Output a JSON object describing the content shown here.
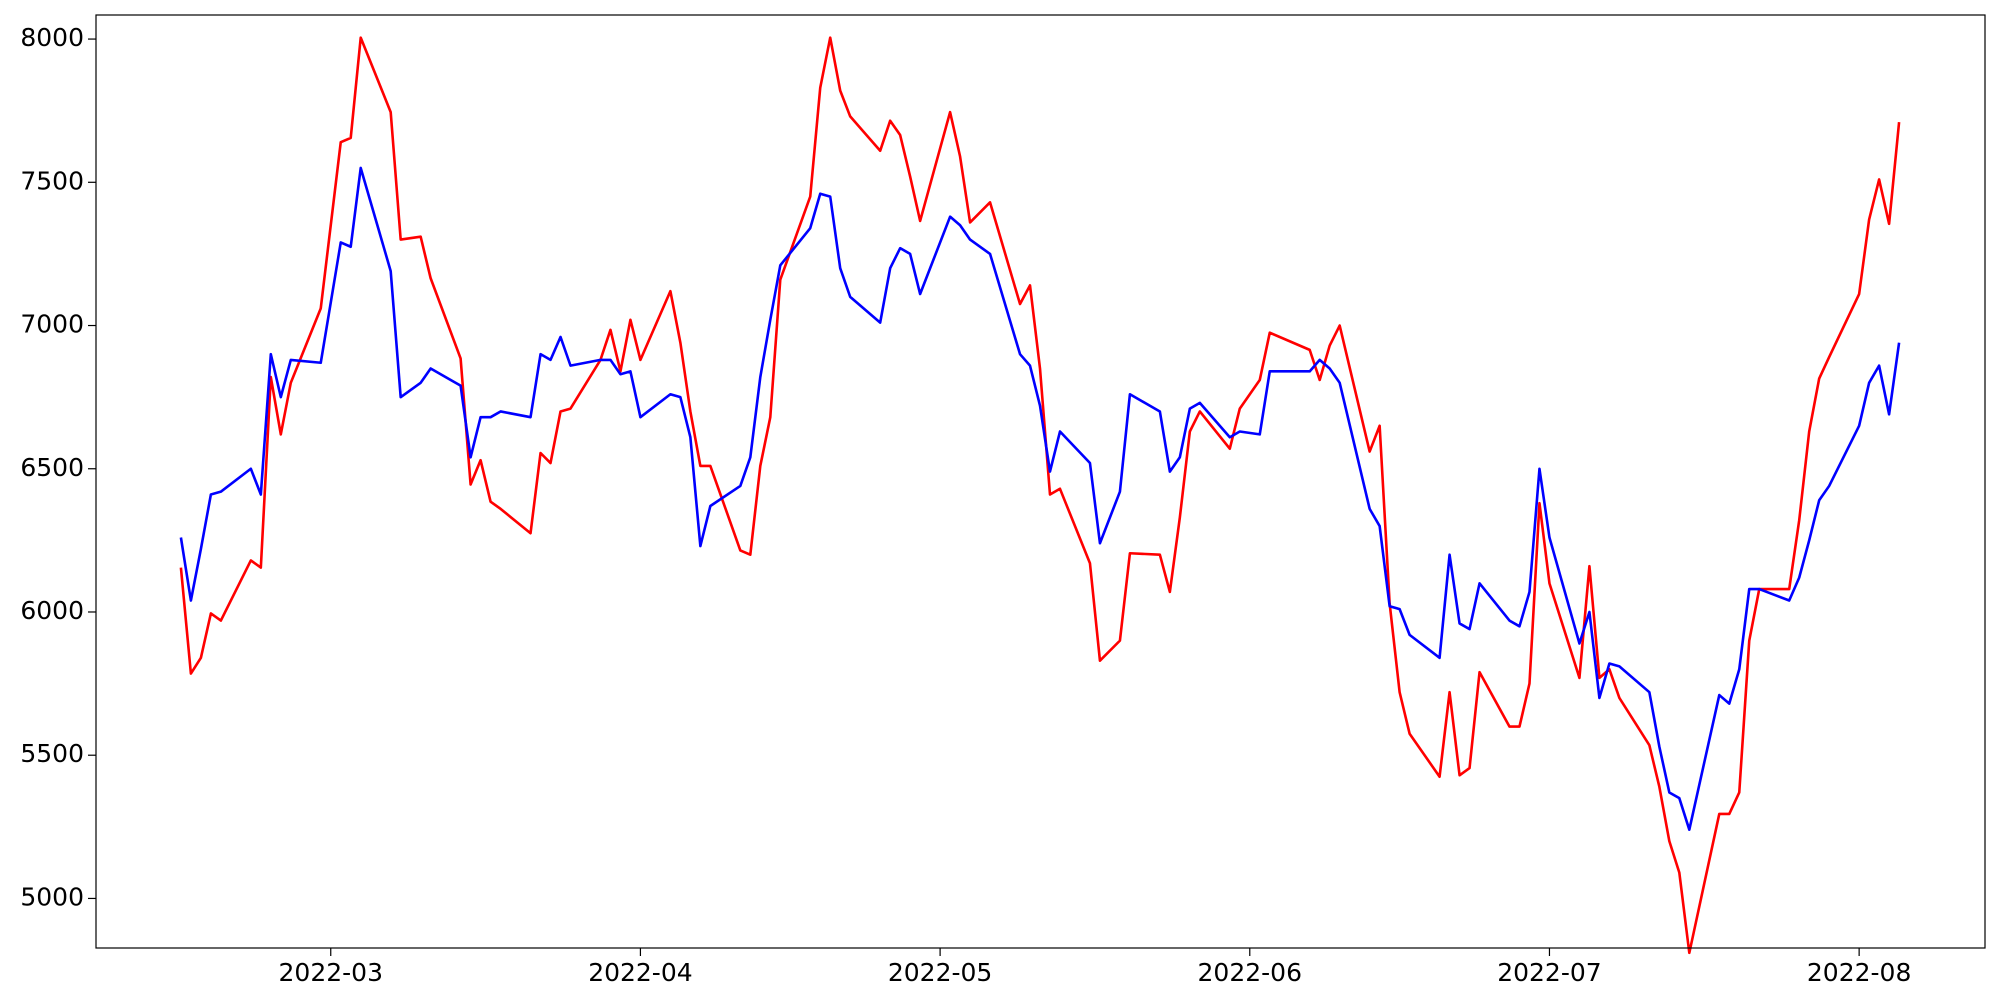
{
  "chart_data": {
    "type": "line",
    "x": [
      44,
      45,
      46,
      47,
      48,
      51,
      52,
      53,
      54,
      55,
      58,
      60,
      61,
      62,
      65,
      66,
      68,
      69,
      72,
      73,
      74,
      75,
      76,
      79,
      80,
      81,
      82,
      83,
      86,
      87,
      88,
      89,
      90,
      93,
      94,
      95,
      96,
      97,
      100,
      101,
      102,
      103,
      104,
      107,
      108,
      109,
      110,
      111,
      114,
      115,
      116,
      117,
      118,
      121,
      122,
      123,
      125,
      128,
      129,
      130,
      131,
      132,
      135,
      136,
      138,
      139,
      142,
      143,
      144,
      145,
      146,
      149,
      150,
      152,
      153,
      157,
      158,
      159,
      160,
      163,
      164,
      165,
      166,
      167,
      170,
      171,
      172,
      173,
      174,
      177,
      178,
      179,
      180,
      181,
      184,
      185,
      186,
      187,
      188,
      191,
      192,
      193,
      194,
      195,
      198,
      199,
      200,
      201,
      202,
      205,
      206,
      207,
      208,
      209,
      212,
      213,
      214,
      215,
      216
    ],
    "series": [
      {
        "color": "#ff0000",
        "values": [
          6155,
          5785,
          5840,
          5995,
          5970,
          6180,
          6155,
          6820,
          6620,
          6800,
          7060,
          7640,
          7655,
          8005,
          7745,
          7300,
          7310,
          7165,
          6885,
          6445,
          6530,
          6385,
          6360,
          6275,
          6555,
          6520,
          6700,
          6710,
          6880,
          6985,
          6840,
          7020,
          6880,
          7120,
          6940,
          6700,
          6510,
          6510,
          6215,
          6200,
          6510,
          6680,
          7160,
          7450,
          7830,
          8005,
          7820,
          7730,
          7610,
          7715,
          7665,
          7520,
          7365,
          7745,
          7590,
          7360,
          7430,
          7075,
          7140,
          6850,
          6410,
          6430,
          6170,
          5830,
          5900,
          6205,
          6200,
          6070,
          6330,
          6630,
          6700,
          6570,
          6710,
          6810,
          6975,
          6915,
          6810,
          6930,
          7000,
          6560,
          6650,
          6030,
          5720,
          5575,
          5425,
          5720,
          5430,
          5455,
          5790,
          5600,
          5600,
          5750,
          6380,
          6100,
          5770,
          6160,
          5770,
          5800,
          5700,
          5535,
          5390,
          5200,
          5090,
          4810,
          5295,
          5295,
          5370,
          5900,
          6080,
          6080,
          6320,
          6630,
          6815,
          6890,
          7110,
          7370,
          7510,
          7355,
          7710
        ]
      },
      {
        "color": "#0000ff",
        "values": [
          6260,
          6040,
          6220,
          6410,
          6420,
          6500,
          6410,
          6900,
          6750,
          6880,
          6870,
          7290,
          7275,
          7550,
          7190,
          6750,
          6800,
          6850,
          6790,
          6540,
          6680,
          6680,
          6700,
          6680,
          6900,
          6880,
          6960,
          6860,
          6880,
          6880,
          6830,
          6840,
          6680,
          6760,
          6750,
          6610,
          6230,
          6370,
          6440,
          6540,
          6820,
          7020,
          7210,
          7340,
          7460,
          7450,
          7200,
          7100,
          7010,
          7200,
          7270,
          7250,
          7110,
          7380,
          7350,
          7300,
          7250,
          6900,
          6860,
          6720,
          6490,
          6630,
          6520,
          6240,
          6420,
          6760,
          6700,
          6490,
          6540,
          6710,
          6730,
          6610,
          6630,
          6620,
          6840,
          6840,
          6880,
          6850,
          6800,
          6360,
          6300,
          6020,
          6010,
          5920,
          5840,
          6200,
          5960,
          5940,
          6100,
          5970,
          5950,
          6070,
          6500,
          6260,
          5890,
          6000,
          5700,
          5820,
          5810,
          5720,
          5530,
          5370,
          5350,
          5240,
          5710,
          5680,
          5800,
          6080,
          6080,
          6040,
          6120,
          6250,
          6390,
          6440,
          6650,
          6800,
          6860,
          6690,
          6940
        ]
      }
    ],
    "xlim": [
      35.5,
      224.6
    ],
    "ylim": [
      4827,
      8084
    ],
    "xticks": [
      {
        "value": 59,
        "label": "2022-03"
      },
      {
        "value": 90,
        "label": "2022-04"
      },
      {
        "value": 120,
        "label": "2022-05"
      },
      {
        "value": 151,
        "label": "2022-06"
      },
      {
        "value": 181,
        "label": "2022-07"
      },
      {
        "value": 212,
        "label": "2022-08"
      }
    ],
    "yticks": [
      5000,
      5500,
      6000,
      6500,
      7000,
      7500,
      8000
    ]
  }
}
